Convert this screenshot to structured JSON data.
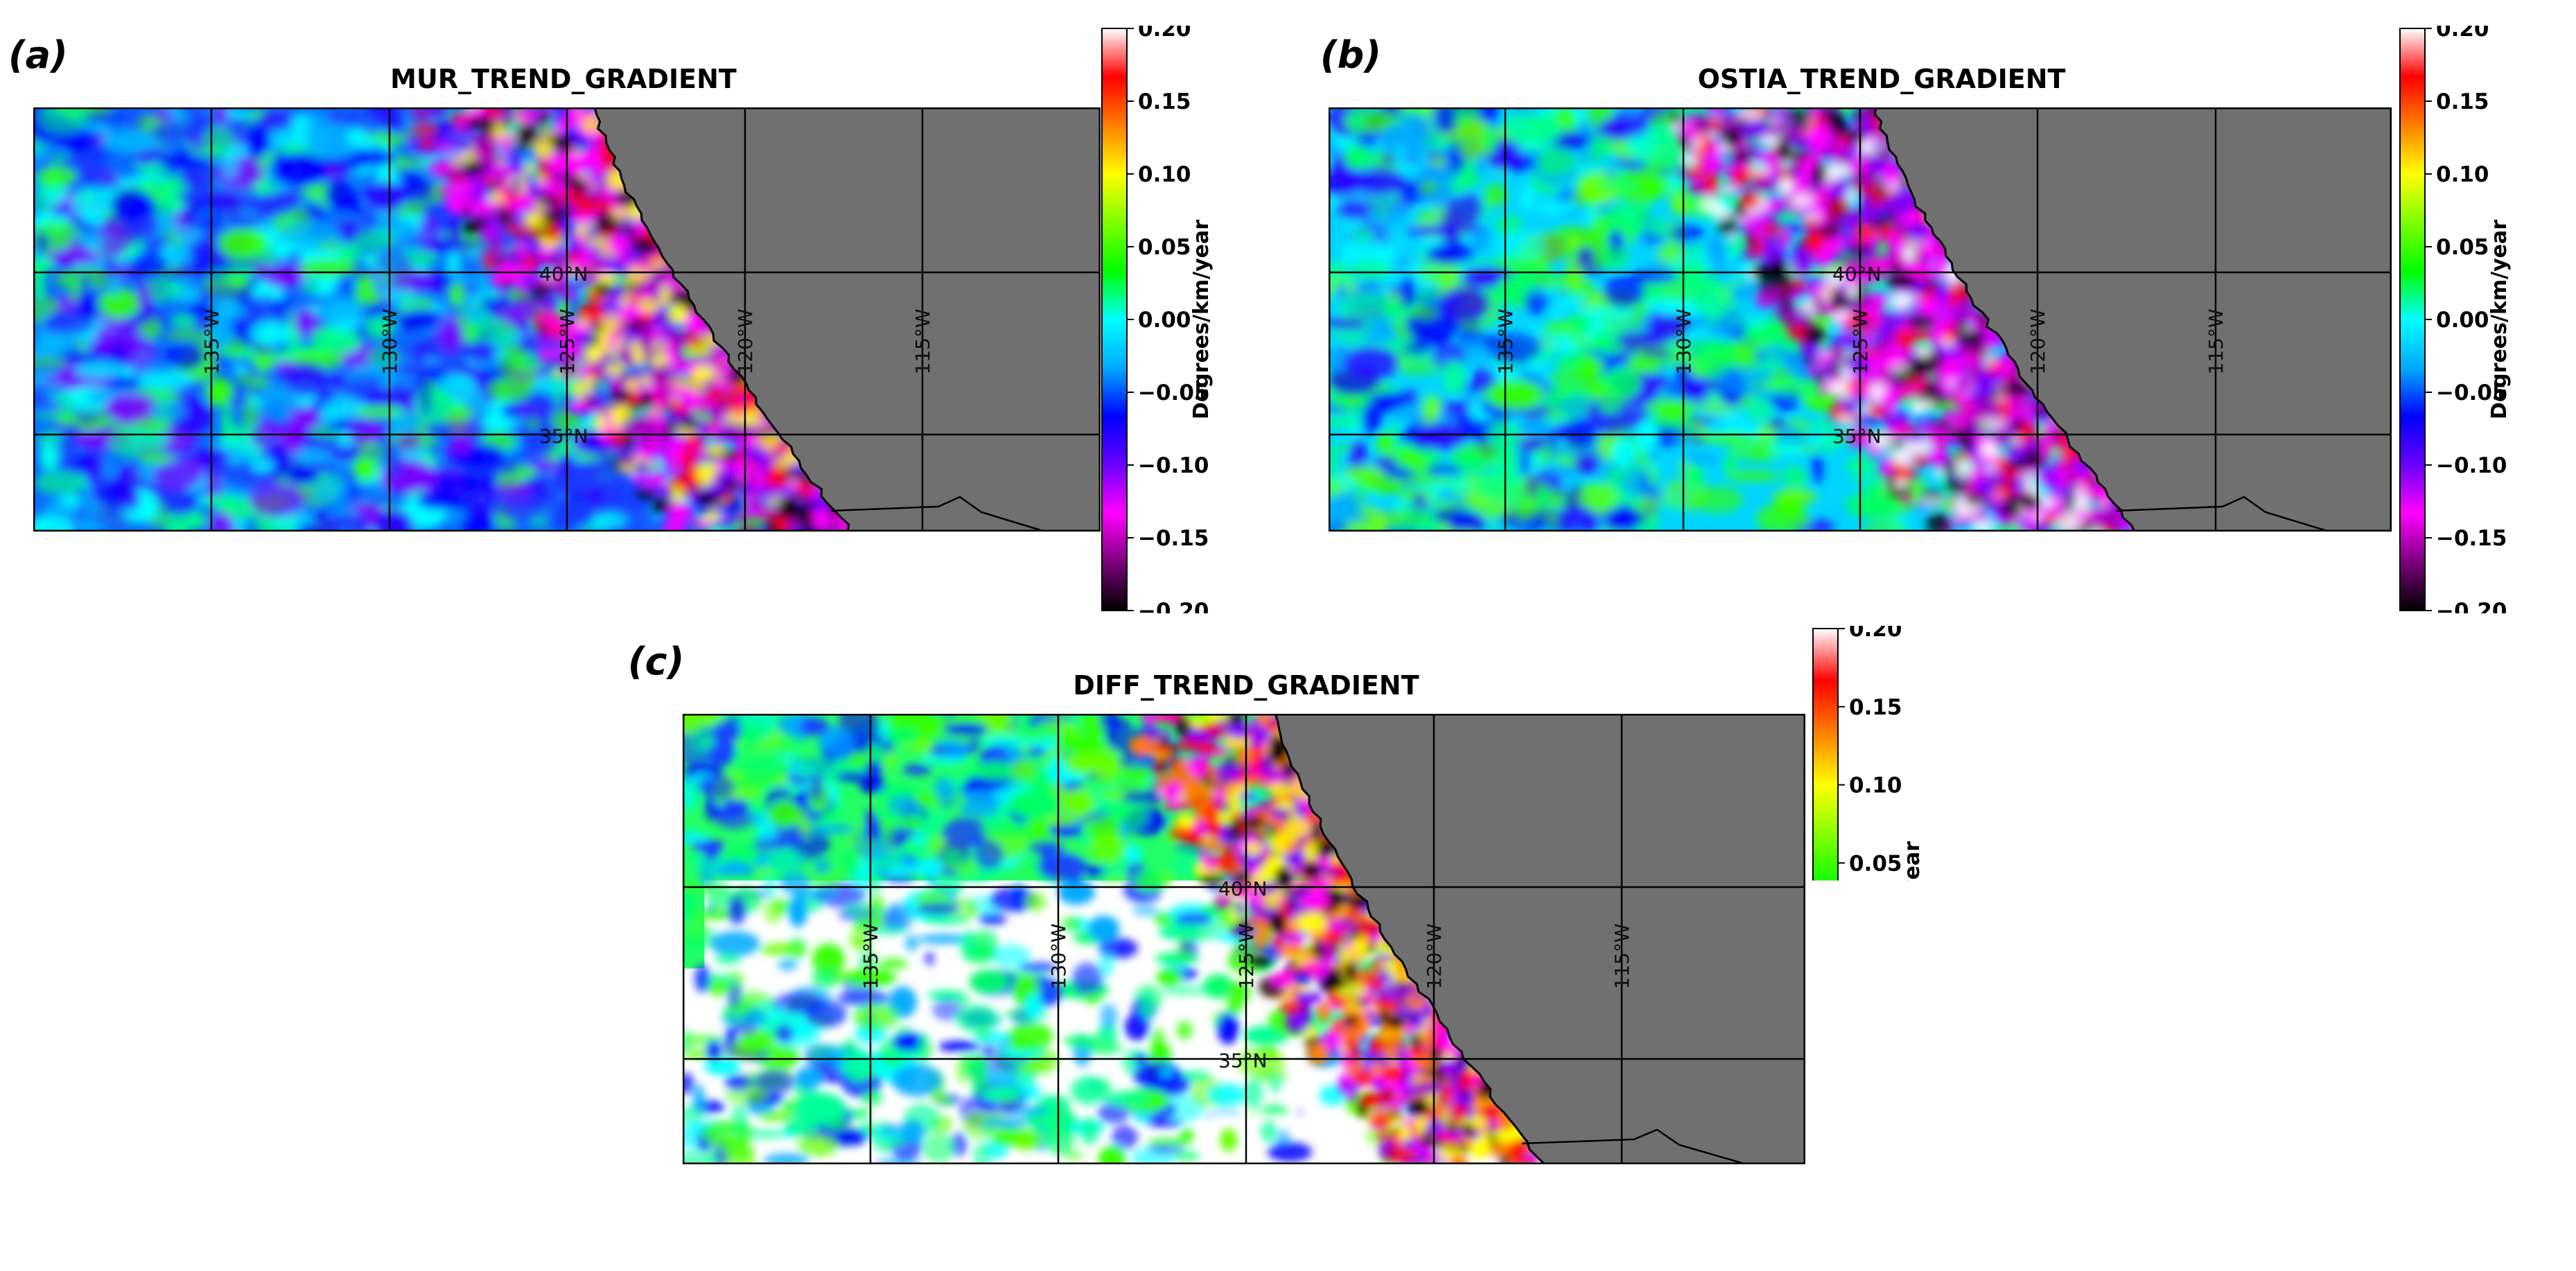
{
  "colormap": {
    "stops": [
      "#000000",
      "#7a007a",
      "#ff00ff",
      "#6a00ff",
      "#0000ff",
      "#00aaff",
      "#00ffff",
      "#00ff00",
      "#7fff00",
      "#ffff00",
      "#ff8000",
      "#ff0000",
      "#ffffff"
    ],
    "land_color": "#707070",
    "grid_color": "#000000"
  },
  "colorbar": {
    "label": "Degrees/km/year",
    "ticks": [
      "0.20",
      "0.15",
      "0.10",
      "0.05",
      "0.00",
      "−0.05",
      "−0.10",
      "−0.15",
      "−0.20"
    ],
    "range": [
      -0.2,
      0.2
    ]
  },
  "panels": [
    {
      "id": "a",
      "letter": "(a)",
      "title": "MUR_TREND_GRADIENT",
      "lon_labels": [
        "135°W",
        "130°W",
        "125°W",
        "120°W",
        "115°W"
      ],
      "lat_labels": [
        "40°N",
        "35°N"
      ],
      "ocean_mean": -0.06,
      "coastal_band": "magenta-black"
    },
    {
      "id": "b",
      "letter": "(b)",
      "title": "OSTIA_TREND_GRADIENT",
      "lon_labels": [
        "135°W",
        "130°W",
        "125°W",
        "120°W",
        "115°W"
      ],
      "lat_labels": [
        "40°N",
        "35°N"
      ],
      "ocean_mean": -0.02,
      "coastal_band": "magenta-black-white"
    },
    {
      "id": "c",
      "letter": "(c)",
      "title": "DIFF_TREND_GRADIENT",
      "lon_labels": [
        "135°W",
        "130°W",
        "125°W",
        "120°W",
        "115°W"
      ],
      "lat_labels": [
        "40°N",
        "35°N"
      ],
      "ocean_mean": 0.0,
      "coastal_band": "red-yellow offshore, black at coast"
    }
  ]
}
